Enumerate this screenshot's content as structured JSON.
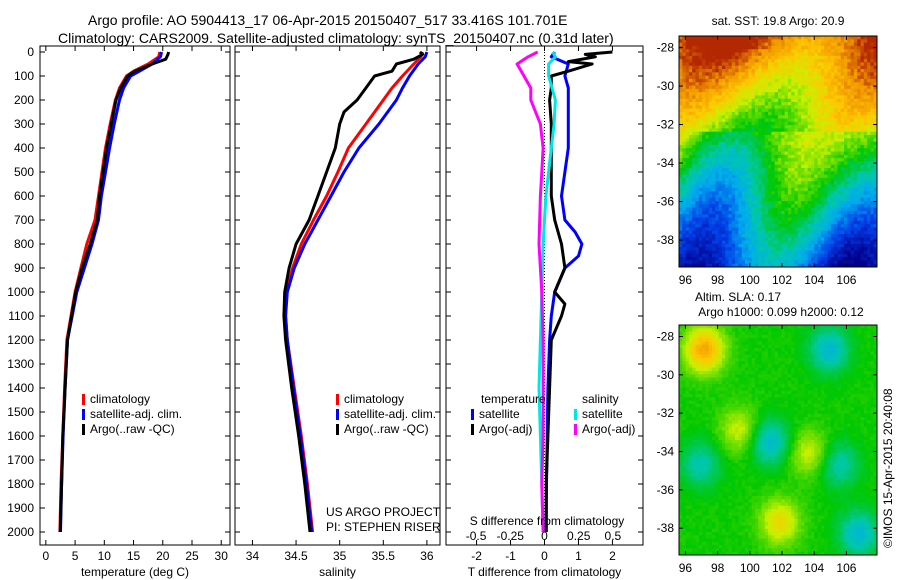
{
  "chart_data": [
    {
      "type": "line",
      "id": "temperature",
      "xlabel": "temperature (deg C)",
      "xlim": [
        -1,
        31.5
      ],
      "xticks": [
        0,
        5,
        10,
        15,
        20,
        25,
        30
      ],
      "ylim": [
        0,
        2060
      ],
      "yticks": [
        0,
        100,
        200,
        300,
        400,
        500,
        600,
        700,
        800,
        900,
        1000,
        1100,
        1200,
        1300,
        1400,
        1500,
        1600,
        1700,
        1800,
        1900,
        2000
      ],
      "legend": [
        "climatology",
        "satellite-adj. clim.",
        "Argo(..raw -QC)"
      ],
      "series": [
        {
          "name": "climatology",
          "color": "#ff0000",
          "depth": [
            0,
            20,
            50,
            80,
            100,
            150,
            200,
            300,
            400,
            500,
            600,
            700,
            800,
            900,
            1000,
            1100,
            1200,
            1400,
            1600,
            1800,
            2000
          ],
          "values": [
            19.5,
            19.3,
            17.5,
            15,
            13.8,
            12.6,
            11.9,
            11,
            10.2,
            9.6,
            9,
            8.4,
            7,
            6,
            5,
            4.3,
            3.6,
            3.2,
            2.9,
            2.6,
            2.4
          ]
        },
        {
          "name": "satellite-adj. clim.",
          "color": "#0000ff",
          "depth": [
            0,
            20,
            50,
            80,
            100,
            150,
            200,
            300,
            400,
            500,
            600,
            700,
            800,
            900,
            1000,
            1100,
            1200,
            1400,
            1600,
            1800,
            2000
          ],
          "values": [
            19.8,
            19.6,
            18.2,
            16,
            14.5,
            13.3,
            12.6,
            11.7,
            10.9,
            10.2,
            9.5,
            9,
            7.9,
            6.6,
            5.3,
            4.5,
            3.7,
            3.3,
            2.95,
            2.7,
            2.5
          ]
        },
        {
          "name": "Argo(..raw -QC)",
          "color": "#000000",
          "depth": [
            0,
            10,
            30,
            50,
            80,
            100,
            150,
            200,
            300,
            400,
            500,
            600,
            700,
            800,
            900,
            1000,
            1100,
            1200,
            1400,
            1600,
            1800,
            2000
          ],
          "values": [
            21,
            20.9,
            20.5,
            18.2,
            15.2,
            14,
            12.8,
            12,
            11.2,
            10.4,
            9.8,
            9.2,
            8.8,
            7.6,
            6.2,
            5.1,
            4.4,
            3.7,
            3.3,
            2.9,
            2.7,
            2.45
          ]
        }
      ]
    },
    {
      "type": "line",
      "id": "salinity",
      "xlabel": "salinity",
      "xlim": [
        33.8,
        36.15
      ],
      "xticks": [
        34,
        34.5,
        35,
        35.5,
        36
      ],
      "legend": [
        "climatology",
        "satellite-adj. clim.",
        "Argo(..raw -QC)"
      ],
      "annotation": [
        "US ARGO PROJECT",
        "PI: STEPHEN RISER"
      ],
      "series": [
        {
          "name": "climatology",
          "color": "#ff0000",
          "depth": [
            0,
            20,
            50,
            100,
            150,
            200,
            300,
            400,
            500,
            600,
            700,
            800,
            900,
            1000,
            1100,
            1200,
            1400,
            1600,
            1800,
            2000
          ],
          "values": [
            35.95,
            35.93,
            35.85,
            35.72,
            35.6,
            35.5,
            35.3,
            35.1,
            34.98,
            34.85,
            34.7,
            34.56,
            34.46,
            34.39,
            34.38,
            34.4,
            34.48,
            34.56,
            34.63,
            34.69
          ]
        },
        {
          "name": "satellite-adj. clim.",
          "color": "#0000ff",
          "depth": [
            0,
            20,
            50,
            100,
            150,
            200,
            300,
            400,
            500,
            600,
            700,
            800,
            900,
            1000,
            1100,
            1200,
            1400,
            1600,
            1800,
            2000
          ],
          "values": [
            36.0,
            35.98,
            35.9,
            35.8,
            35.72,
            35.65,
            35.45,
            35.22,
            35.05,
            34.9,
            34.75,
            34.6,
            34.48,
            34.4,
            34.38,
            34.4,
            34.47,
            34.55,
            34.62,
            34.68
          ]
        },
        {
          "name": "Argo(..raw -QC)",
          "color": "#000000",
          "depth": [
            0,
            10,
            30,
            50,
            80,
            100,
            150,
            200,
            250,
            300,
            400,
            500,
            600,
            700,
            800,
            900,
            1000,
            1100,
            1200,
            1400,
            1600,
            1800,
            2000
          ],
          "values": [
            35.92,
            35.95,
            35.85,
            35.65,
            35.6,
            35.4,
            35.3,
            35.2,
            35.05,
            35.0,
            34.95,
            34.85,
            34.75,
            34.65,
            34.5,
            34.42,
            34.37,
            34.36,
            34.38,
            34.45,
            34.53,
            34.6,
            34.66
          ]
        }
      ]
    },
    {
      "type": "line",
      "id": "difference",
      "xlabel": "T difference from climatology",
      "x2label": "S difference from climatology",
      "xlim": [
        -2.9,
        2.9
      ],
      "xticks": [
        -2,
        -1,
        0,
        1,
        2
      ],
      "x2lim": [
        -0.72,
        0.72
      ],
      "x2ticks": [
        -0.5,
        -0.25,
        0,
        0.25,
        0.5
      ],
      "legend": {
        "temperature_title": "temperature",
        "salinity_title": "salinity",
        "items": [
          "satellite",
          "Argo(-adj)",
          "satellite",
          "Argo(-adj)"
        ]
      },
      "series": [
        {
          "name": "T satellite",
          "color": "#0000ff",
          "axis": "T",
          "depth": [
            0,
            20,
            50,
            100,
            150,
            200,
            300,
            400,
            500,
            600,
            700,
            750,
            800,
            850,
            900,
            1000,
            1100,
            1200,
            1400,
            1600,
            1800,
            2000
          ],
          "values": [
            0.3,
            0.2,
            0.7,
            0.6,
            0.7,
            0.7,
            0.7,
            0.7,
            0.6,
            0.5,
            0.6,
            0.9,
            1.1,
            1.0,
            0.6,
            0.3,
            0.2,
            0.15,
            0.1,
            0.08,
            0.06,
            0.05
          ]
        },
        {
          "name": "T Argo(-adj)",
          "color": "#000000",
          "axis": "T",
          "depth": [
            0,
            10,
            20,
            40,
            50,
            80,
            100,
            150,
            200,
            300,
            400,
            500,
            600,
            700,
            800,
            900,
            1000,
            1050,
            1100,
            1200,
            1400,
            1600,
            1800,
            2000
          ],
          "values": [
            2.0,
            1.2,
            1.5,
            0.7,
            1.4,
            0.7,
            0.2,
            0.2,
            0.15,
            0.2,
            0.2,
            0.2,
            0.2,
            0.3,
            0.5,
            0.6,
            0.3,
            0.6,
            0.5,
            0.2,
            0.15,
            0.1,
            0.05,
            0.05
          ]
        },
        {
          "name": "S satellite",
          "color": "#00e5e5",
          "axis": "S",
          "depth": [
            0,
            20,
            50,
            100,
            200,
            300,
            400,
            500,
            600,
            800,
            1000,
            1200,
            1400,
            1600,
            1800,
            2000
          ],
          "values": [
            0.06,
            0.08,
            0.03,
            0.03,
            0.08,
            0.07,
            0.05,
            0.03,
            0.01,
            -0.01,
            -0.02,
            -0.03,
            -0.04,
            -0.03,
            -0.02,
            -0.01
          ]
        },
        {
          "name": "S Argo(-adj)",
          "color": "#ff00ff",
          "axis": "S",
          "depth": [
            0,
            20,
            50,
            100,
            150,
            200,
            300,
            400,
            500,
            600,
            800,
            1000,
            1200,
            1400,
            1600,
            1800,
            2000
          ],
          "values": [
            -0.05,
            -0.12,
            -0.2,
            -0.15,
            -0.1,
            -0.1,
            -0.03,
            -0.01,
            -0.02,
            -0.03,
            -0.04,
            -0.02,
            -0.01,
            -0.01,
            -0.01,
            -0.02,
            -0.01
          ]
        }
      ]
    },
    {
      "type": "heatmap",
      "id": "sst-map",
      "title": "sat. SST: 19.8 Argo: 20.9",
      "xticks": [
        96,
        98,
        100,
        102,
        104,
        106
      ],
      "yticks": [
        -28,
        -30,
        -32,
        -34,
        -36,
        -38
      ],
      "xlim": [
        95.6,
        107.9
      ],
      "ylim": [
        -39.4,
        -27.4
      ]
    },
    {
      "type": "heatmap",
      "id": "sla-map",
      "title": "Altim. SLA: 0.17",
      "subtitle": "Argo h1000: 0.099 h2000: 0.12",
      "xticks": [
        96,
        98,
        100,
        102,
        104,
        106
      ],
      "yticks": [
        -28,
        -30,
        -32,
        -34,
        -36,
        -38
      ],
      "xlim": [
        95.6,
        107.9
      ],
      "ylim": [
        -39.4,
        -27.4
      ]
    }
  ],
  "title_line1": "Argo profile: AO 5904413_17 06-Apr-2015 20150407_517 33.416S 101.701E",
  "title_line2": "Climatology: CARS2009. Satellite-adjusted climatology: synTS_20150407.nc (0.31d later)",
  "credit": "©IMOS 15-Apr-2015 20:40:08"
}
